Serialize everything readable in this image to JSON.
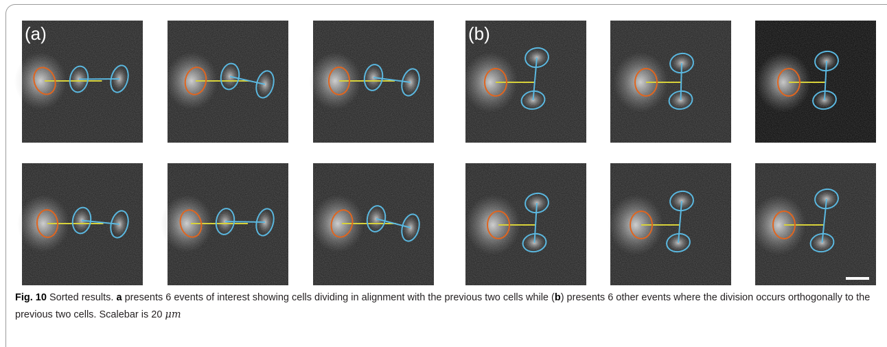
{
  "panels": {
    "group_a_label": "(a)",
    "group_b_label": "(b)"
  },
  "caption": {
    "figure_label": "Fig. 10",
    "text_1": "Sorted results.",
    "ref_a": "a",
    "text_2": "presents 6 events of interest showing cells dividing in alignment with the previous two cells while (",
    "ref_b": "b",
    "text_3": ") presents 6 other events where the division occurs orthogonally to the previous two cells. Scalebar is 20",
    "unit": "μm"
  }
}
